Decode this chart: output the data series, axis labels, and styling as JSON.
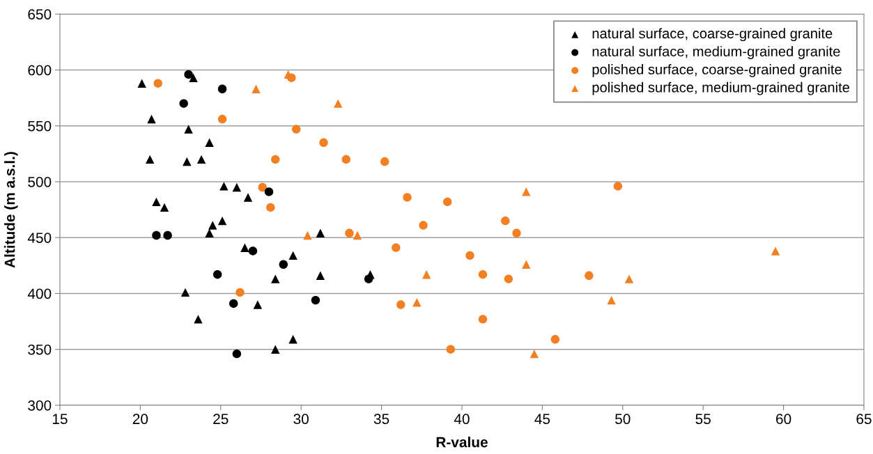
{
  "chart_data": {
    "type": "scatter",
    "xlabel": "R-value",
    "ylabel": "Altitude (m a.s.l.)",
    "xlim": [
      15,
      65
    ],
    "xticks": [
      15,
      20,
      25,
      30,
      35,
      40,
      45,
      50,
      55,
      60,
      65
    ],
    "ylim": [
      300,
      650
    ],
    "yticks": [
      300,
      350,
      400,
      450,
      500,
      550,
      600,
      650
    ],
    "grid": "y",
    "legend": "top right",
    "series": [
      {
        "name": "natural surface, coarse-grained granite",
        "color": "#000000",
        "marker": "triangle",
        "x": [
          20.1,
          20.7,
          20.6,
          21.0,
          21.5,
          23.3,
          23.0,
          24.3,
          23.8,
          22.9,
          25.2,
          26.0,
          26.7,
          24.5,
          24.3,
          25.1,
          26.5,
          29.5,
          31.2,
          22.8,
          23.6,
          27.3,
          28.4,
          31.2,
          34.3,
          28.4,
          29.5
        ],
        "values": [
          588,
          556,
          520,
          482,
          477,
          593,
          547,
          535,
          520,
          518,
          496,
          495,
          486,
          461,
          454,
          465,
          441,
          434,
          454,
          401,
          377,
          390,
          413,
          416,
          417,
          350,
          359
        ]
      },
      {
        "name": "natural surface, medium-grained granite",
        "color": "#000000",
        "marker": "circle",
        "x": [
          23.0,
          25.1,
          22.7,
          28.0,
          21.0,
          21.7,
          27.0,
          28.9,
          24.8,
          34.2,
          25.8,
          30.9,
          26.0
        ],
        "values": [
          596,
          583,
          570,
          491,
          452,
          452,
          438,
          426,
          417,
          413,
          391,
          394,
          346
        ]
      },
      {
        "name": "polished surface, coarse-grained granite",
        "color": "#f28022",
        "marker": "circle",
        "x": [
          21.1,
          29.4,
          25.1,
          29.7,
          31.4,
          28.4,
          32.8,
          35.2,
          27.6,
          28.1,
          33.0,
          26.2,
          49.7,
          36.6,
          39.1,
          42.7,
          37.6,
          43.4,
          35.9,
          40.5,
          41.3,
          42.9,
          47.9,
          36.2,
          41.3,
          45.8,
          39.3
        ],
        "values": [
          588,
          593,
          556,
          547,
          535,
          520,
          520,
          518,
          495,
          477,
          454,
          401,
          496,
          486,
          482,
          465,
          461,
          454,
          441,
          434,
          417,
          413,
          416,
          390,
          377,
          359,
          350
        ]
      },
      {
        "name": "polished surface, medium-grained granite",
        "color": "#f28022",
        "marker": "triangle",
        "x": [
          27.2,
          29.2,
          32.3,
          30.4,
          33.5,
          44.0,
          44.0,
          37.8,
          50.4,
          37.2,
          49.3,
          44.5,
          59.5
        ],
        "values": [
          583,
          596,
          570,
          452,
          452,
          491,
          426,
          417,
          413,
          392,
          394,
          346,
          438
        ]
      }
    ]
  }
}
